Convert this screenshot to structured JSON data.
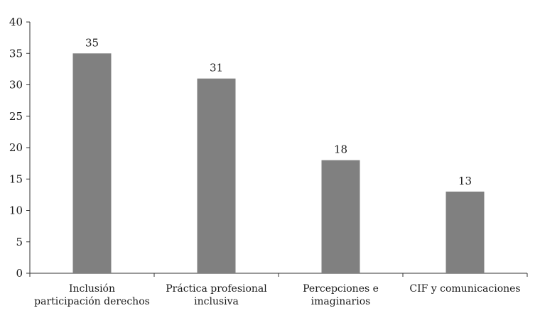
{
  "chart_data": {
    "type": "bar",
    "categories": [
      "Inclusión participación derechos",
      "Práctica profesional inclusiva",
      "Percepciones e imaginarios",
      "CIF y comunicaciones"
    ],
    "category_label_lines": [
      [
        "Inclusión",
        "participación derechos"
      ],
      [
        "Práctica profesional",
        "inclusiva"
      ],
      [
        "Percepciones e",
        "imaginarios"
      ],
      [
        "CIF y comunicaciones"
      ]
    ],
    "values": [
      35,
      31,
      18,
      13
    ],
    "data_labels": [
      "35",
      "31",
      "18",
      "13"
    ],
    "ylim": [
      0,
      40
    ],
    "yticks": [
      0,
      5,
      10,
      15,
      20,
      25,
      30,
      35,
      40
    ],
    "title": "",
    "xlabel": "",
    "ylabel": "",
    "grid": false,
    "colors": {
      "bar": "#808080",
      "axis": "#333333",
      "text": "#1a1a1a"
    }
  }
}
